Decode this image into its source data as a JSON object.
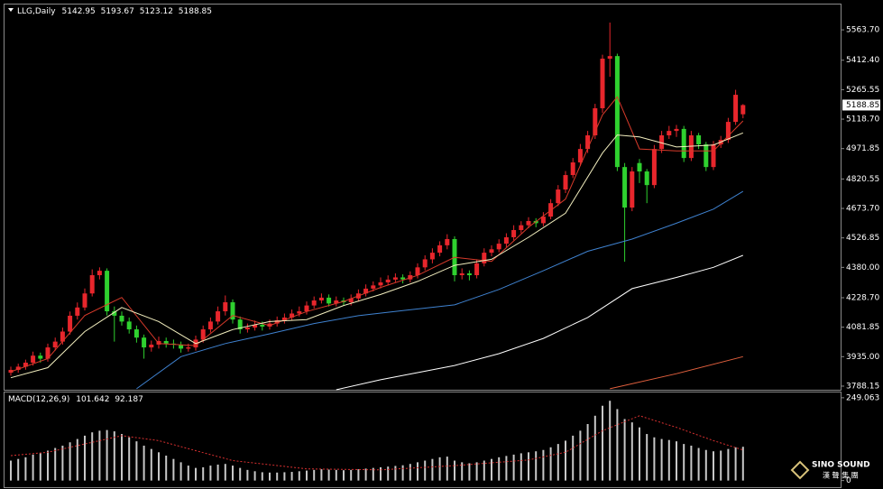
{
  "chart_data": [
    {
      "type": "candlestick",
      "title": "LLG,Daily",
      "up_color": "#e8262c",
      "down_color": "#2fd12f",
      "ylim": [
        3770,
        5690
      ],
      "yticks": [
        {
          "value": 5563.7,
          "label": "5563.70"
        },
        {
          "value": 5412.4,
          "label": "5412.40"
        },
        5265.55,
        {
          "value": 5118.7,
          "label": "5118.70"
        },
        4971.85,
        4820.55,
        {
          "value": 4673.7,
          "label": "4673.70"
        },
        4526.85,
        {
          "value": 4380,
          "label": "4380.00"
        },
        {
          "value": 4228.7,
          "label": "4228.70"
        },
        4081.85,
        {
          "value": 3935,
          "label": "3935.00"
        },
        3788.15
      ],
      "candles": {
        "open": [
          3855,
          3869,
          3885,
          3905,
          3940,
          3925,
          3981,
          4010,
          4060,
          4139,
          4180,
          4250,
          4341,
          4363,
          4161,
          4139,
          4110,
          4071,
          4030,
          3981,
          3995,
          4013,
          4000,
          3995,
          3975,
          3981,
          4020,
          4071,
          4110,
          4161,
          4206,
          4120,
          4071,
          4080,
          4094,
          4085,
          4100,
          4116,
          4130,
          4150,
          4161,
          4190,
          4215,
          4229,
          4200,
          4215,
          4206,
          4225,
          4250,
          4274,
          4290,
          4305,
          4319,
          4330,
          4320,
          4341,
          4380,
          4420,
          4453,
          4490,
          4521,
          4341,
          4350,
          4341,
          4400,
          4453,
          4470,
          4498,
          4530,
          4566,
          4590,
          4611,
          4600,
          4633,
          4700,
          4768,
          4840,
          4903,
          4970,
          5038,
          5173,
          5420,
          5433,
          4880,
          4678,
          4900,
          4858,
          4790,
          4970,
          5038,
          5060,
          5070,
          4925,
          5038,
          4993,
          4880,
          4993,
          5015,
          5105,
          5142.95
        ],
        "high": [
          3885,
          3900,
          3920,
          3960,
          3955,
          4000,
          4030,
          4080,
          4160,
          4205,
          4275,
          4370,
          4380,
          4375,
          4185,
          4160,
          4130,
          4090,
          4045,
          4015,
          4035,
          4030,
          4020,
          4010,
          4000,
          4040,
          4090,
          4130,
          4185,
          4240,
          4220,
          4135,
          4100,
          4115,
          4110,
          4120,
          4135,
          4150,
          4170,
          4185,
          4210,
          4235,
          4250,
          4245,
          4235,
          4230,
          4245,
          4270,
          4295,
          4310,
          4330,
          4340,
          4350,
          4345,
          4360,
          4400,
          4440,
          4475,
          4510,
          4545,
          4535,
          4375,
          4365,
          4420,
          4475,
          4490,
          4520,
          4550,
          4590,
          4610,
          4630,
          4625,
          4655,
          4720,
          4790,
          4860,
          4925,
          4995,
          5060,
          5195,
          5440,
          5600,
          5445,
          4900,
          4880,
          4920,
          4870,
          4990,
          5060,
          5085,
          5090,
          5085,
          5060,
          5050,
          5005,
          5010,
          5035,
          5125,
          5265,
          5193.67
        ],
        "low": [
          3840,
          3855,
          3870,
          3890,
          3905,
          3910,
          3965,
          3995,
          4045,
          4120,
          4165,
          4235,
          4320,
          4140,
          4010,
          4090,
          4050,
          4005,
          3925,
          3960,
          3975,
          3980,
          3975,
          3955,
          3960,
          3965,
          4005,
          4055,
          4095,
          4140,
          4100,
          4050,
          4055,
          4065,
          4065,
          4070,
          4085,
          4100,
          4115,
          4135,
          4145,
          4175,
          4200,
          4185,
          4185,
          4190,
          4190,
          4210,
          4235,
          4260,
          4275,
          4290,
          4305,
          4300,
          4305,
          4325,
          4365,
          4400,
          4435,
          4470,
          4310,
          4320,
          4315,
          4325,
          4385,
          4435,
          4455,
          4480,
          4515,
          4550,
          4575,
          4580,
          4585,
          4620,
          4685,
          4750,
          4825,
          4885,
          4950,
          5020,
          5150,
          5330,
          4860,
          4408,
          4660,
          4800,
          4700,
          4775,
          4950,
          5020,
          5030,
          4905,
          4910,
          4970,
          4860,
          4865,
          4975,
          5000,
          5090,
          5123.12
        ],
        "close": [
          3869,
          3885,
          3905,
          3940,
          3925,
          3981,
          4010,
          4060,
          4139,
          4180,
          4250,
          4341,
          4363,
          4161,
          4139,
          4110,
          4071,
          4030,
          3981,
          3995,
          4013,
          4000,
          3995,
          3975,
          3981,
          4020,
          4071,
          4110,
          4161,
          4206,
          4120,
          4071,
          4080,
          4094,
          4085,
          4100,
          4116,
          4130,
          4150,
          4161,
          4190,
          4215,
          4229,
          4200,
          4215,
          4206,
          4225,
          4250,
          4274,
          4290,
          4305,
          4319,
          4330,
          4320,
          4341,
          4380,
          4420,
          4453,
          4490,
          4521,
          4341,
          4350,
          4341,
          4400,
          4453,
          4470,
          4498,
          4530,
          4566,
          4590,
          4611,
          4600,
          4633,
          4700,
          4768,
          4840,
          4903,
          4970,
          5038,
          5173,
          5420,
          5433,
          4880,
          4678,
          4858,
          4858,
          4790,
          4970,
          5038,
          5060,
          5070,
          4925,
          5038,
          4993,
          4880,
          4993,
          5015,
          5105,
          5240,
          5188.85
        ]
      },
      "overlays": [
        {
          "color": "#d83a2a",
          "x": [
            0,
            5,
            10,
            15,
            20,
            25,
            30,
            35,
            40,
            45,
            50,
            55,
            60,
            65,
            70,
            75,
            80,
            82,
            85,
            90,
            95,
            99
          ],
          "values": [
            3860,
            3925,
            4140,
            4230,
            4000,
            3990,
            4140,
            4090,
            4160,
            4210,
            4280,
            4340,
            4430,
            4410,
            4580,
            4720,
            5140,
            5230,
            4970,
            4960,
            4960,
            5110
          ]
        },
        {
          "color": "#f3efbf",
          "x": [
            0,
            5,
            10,
            15,
            20,
            25,
            30,
            35,
            40,
            45,
            50,
            55,
            60,
            65,
            70,
            75,
            80,
            82,
            85,
            90,
            95,
            99
          ],
          "values": [
            3830,
            3880,
            4060,
            4180,
            4110,
            4000,
            4070,
            4110,
            4120,
            4190,
            4245,
            4310,
            4390,
            4420,
            4530,
            4650,
            4950,
            5040,
            5030,
            4980,
            4990,
            5050
          ]
        },
        {
          "color": "#3f82d0",
          "x": [
            17,
            23,
            29,
            35,
            41,
            47,
            53,
            60,
            66,
            72,
            78,
            84,
            90,
            95,
            99
          ],
          "values": [
            3775,
            3935,
            4000,
            4049,
            4100,
            4139,
            4165,
            4193,
            4270,
            4363,
            4460,
            4521,
            4600,
            4670,
            4759
          ]
        },
        {
          "color": "#ffffff",
          "x": [
            44,
            50,
            60,
            66,
            72,
            78,
            84,
            90,
            95,
            99
          ],
          "values": [
            3770,
            3820,
            3891,
            3950,
            4026,
            4130,
            4274,
            4330,
            4380,
            4440
          ]
        },
        {
          "color": "#e2603e",
          "x": [
            81,
            90,
            99
          ],
          "values": [
            3775,
            3850,
            3935
          ]
        }
      ]
    },
    {
      "type": "macd",
      "title": "MACD(12,26,9)",
      "ylim": [
        -20,
        265
      ],
      "yticks": [
        249.063,
        0
      ],
      "histogram": {
        "color": "#c8c8c8",
        "values": [
          60,
          65,
          70,
          78,
          82,
          90,
          98,
          105,
          115,
          125,
          135,
          145,
          150,
          152,
          148,
          140,
          130,
          118,
          105,
          95,
          85,
          75,
          65,
          55,
          45,
          38,
          40,
          45,
          48,
          50,
          45,
          38,
          32,
          28,
          25,
          24,
          24,
          25,
          26,
          28,
          30,
          32,
          34,
          33,
          32,
          31,
          32,
          34,
          36,
          38,
          40,
          42,
          44,
          46,
          50,
          55,
          60,
          65,
          70,
          72,
          60,
          55,
          52,
          55,
          60,
          65,
          70,
          74,
          78,
          82,
          85,
          88,
          92,
          100,
          110,
          120,
          135,
          150,
          170,
          195,
          225,
          240,
          215,
          185,
          175,
          160,
          140,
          130,
          125,
          122,
          118,
          110,
          105,
          98,
          92,
          88,
          90,
          95,
          100,
          101.642
        ]
      },
      "signal": {
        "color": "#d83030",
        "x": [
          0,
          5,
          10,
          15,
          20,
          25,
          30,
          40,
          50,
          60,
          70,
          75,
          80,
          85,
          90,
          95,
          99
        ],
        "values": [
          75,
          85,
          110,
          135,
          120,
          90,
          60,
          35,
          32,
          45,
          62,
          85,
          150,
          195,
          160,
          120,
          92.187
        ]
      }
    },
    {
      "type": "logo",
      "title": "SINO SOUND",
      "subtitle": "漢 聲 集 團"
    }
  ]
}
